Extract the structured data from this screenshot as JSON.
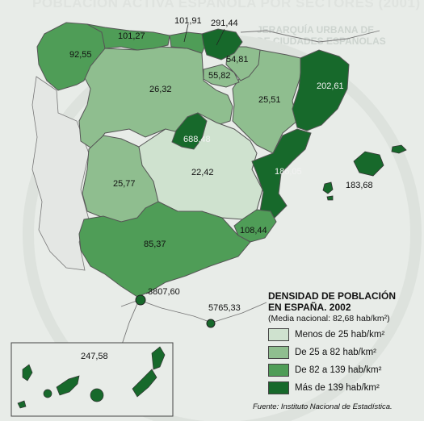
{
  "header": {
    "background_title": "POBLACIÓN ACTIVA ESPAÑOLA POR SECTORES (2001)",
    "background_subtitle_1": "JERARQUÍA URBANA DE",
    "background_subtitle_2": "DE CIUDADES ESPAÑOLAS"
  },
  "colors": {
    "class_1": "#cfe2cf",
    "class_2": "#8fbe8f",
    "class_3": "#4f9d57",
    "class_4": "#17692b",
    "outside": "#e4e7e4",
    "ocean": "#e8ece8"
  },
  "regions": [
    {
      "name": "Galicia",
      "value": "92,55",
      "class": 3
    },
    {
      "name": "Asturias",
      "value": "101,27",
      "class": 3
    },
    {
      "name": "Cantabria",
      "value": "101,91",
      "class": 3
    },
    {
      "name": "País Vasco",
      "value": "291,44",
      "class": 4
    },
    {
      "name": "Navarra",
      "value": "54,81",
      "class": 2
    },
    {
      "name": "La Rioja",
      "value": "55,82",
      "class": 2
    },
    {
      "name": "Castilla y León",
      "value": "26,32",
      "class": 2
    },
    {
      "name": "Aragón",
      "value": "25,51",
      "class": 2
    },
    {
      "name": "Cataluña",
      "value": "202,61",
      "class": 4
    },
    {
      "name": "Madrid",
      "value": "688,48",
      "class": 4
    },
    {
      "name": "Castilla-La Mancha",
      "value": "22,42",
      "class": 1
    },
    {
      "name": "Extremadura",
      "value": "25,77",
      "class": 2
    },
    {
      "name": "Comunidad Valenciana",
      "value": "186,05",
      "class": 4
    },
    {
      "name": "Islas Baleares",
      "value": "183,68",
      "class": 4
    },
    {
      "name": "Murcia",
      "value": "108,44",
      "class": 3
    },
    {
      "name": "Andalucía",
      "value": "85,37",
      "class": 3
    },
    {
      "name": "Ceuta",
      "value": "3807,60",
      "class": 4
    },
    {
      "name": "Melilla",
      "value": "5765,33",
      "class": 4
    },
    {
      "name": "Islas Canarias",
      "value": "247,58",
      "class": 4
    }
  ],
  "legend": {
    "title_line1": "DENSIDAD DE POBLACIÓN",
    "title_line2": "EN ESPAÑA. 2002",
    "note": "(Media nacional: 82,68 hab/km²)",
    "items": [
      {
        "label": "Menos de 25 hab/km²",
        "class": 1
      },
      {
        "label": "De 25 a 82 hab/km²",
        "class": 2
      },
      {
        "label": "De 82 a 139 hab/km²",
        "class": 3
      },
      {
        "label": "Más de 139 hab/km²",
        "class": 4
      }
    ]
  },
  "source": "Fuente: Instituto Nacional de Estadística."
}
